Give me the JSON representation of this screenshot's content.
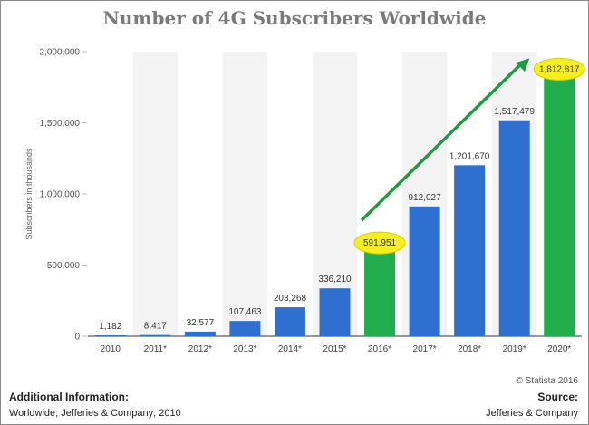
{
  "chart_data": {
    "type": "bar",
    "title": "Number of 4G Subscribers Worldwide",
    "ylabel": "Subscribers in thousands",
    "xlabel": "",
    "ylim": [
      0,
      2000000
    ],
    "yticks": [
      "0",
      "500,000",
      "1,000,000",
      "1,500,000",
      "2,000,000"
    ],
    "categories": [
      "2010",
      "2011*",
      "2012*",
      "2013*",
      "2014*",
      "2015*",
      "2016*",
      "2017*",
      "2018*",
      "2019*",
      "2020*"
    ],
    "values": [
      1182,
      8417,
      32577,
      107463,
      203268,
      336210,
      591951,
      912027,
      1201670,
      1517479,
      1812817
    ],
    "value_labels": [
      "1,182",
      "8,417",
      "32,577",
      "107,463",
      "203,268",
      "336,210",
      "591,951",
      "912,027",
      "1,201,670",
      "1,517,479",
      "1,812,817"
    ],
    "highlighted": [
      "2016*",
      "2020*"
    ],
    "grid": false,
    "colors": {
      "bar": "#2f6fcf",
      "highlight": "#21ad4b",
      "arrow": "#1f9a40",
      "oval": "#f5ef1d",
      "band": "#f3f3f3"
    }
  },
  "footer": {
    "credit": "© Statista 2016",
    "additional_title": "Additional Information:",
    "additional_text": "Worldwide; Jefferies & Company; 2010",
    "source_title": "Source:",
    "source_text": "Jefferies & Company"
  }
}
